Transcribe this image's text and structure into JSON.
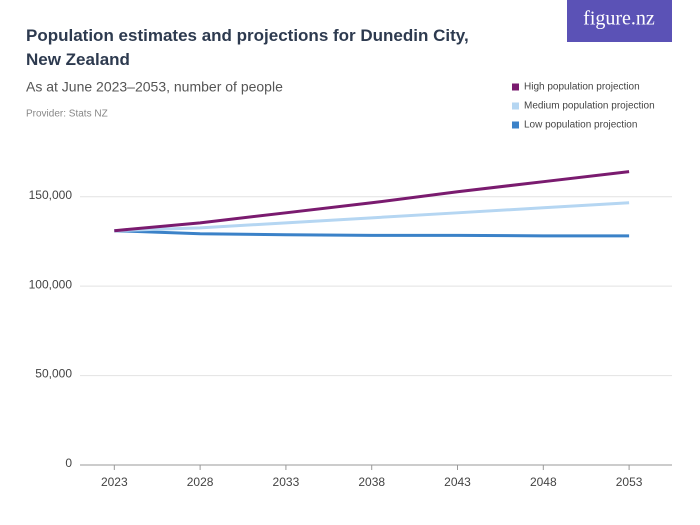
{
  "brand": "figure.nz",
  "chart_data": {
    "type": "line",
    "title": "Population estimates and projections for Dunedin City, New Zealand",
    "subtitle": "As at June 2023–2053, number of people",
    "provider": "Provider: Stats NZ",
    "x": [
      2023,
      2028,
      2033,
      2038,
      2043,
      2048,
      2053
    ],
    "xlim": [
      2021,
      2055.5
    ],
    "xticks": [
      2023,
      2028,
      2033,
      2038,
      2043,
      2048,
      2053
    ],
    "ylim": [
      0,
      175000
    ],
    "yticks": [
      0,
      {
        "value": 50000,
        "label": "50,000"
      },
      {
        "value": 100000,
        "label": "100,000"
      },
      {
        "value": 150000,
        "label": "150,000"
      }
    ],
    "grid": true,
    "legend": "top-right",
    "series": [
      {
        "name": "High population projection",
        "color": "#7a1b6f",
        "values": [
          131000,
          135400,
          141000,
          146600,
          152800,
          158400,
          164000
        ]
      },
      {
        "name": "Medium population projection",
        "color": "#b5d6f2",
        "values": [
          131000,
          132600,
          135400,
          138200,
          141000,
          143800,
          146600
        ]
      },
      {
        "name": "Low population projection",
        "color": "#3b82c8",
        "values": [
          131000,
          129300,
          128700,
          128400,
          128400,
          128100,
          128100
        ]
      }
    ]
  }
}
